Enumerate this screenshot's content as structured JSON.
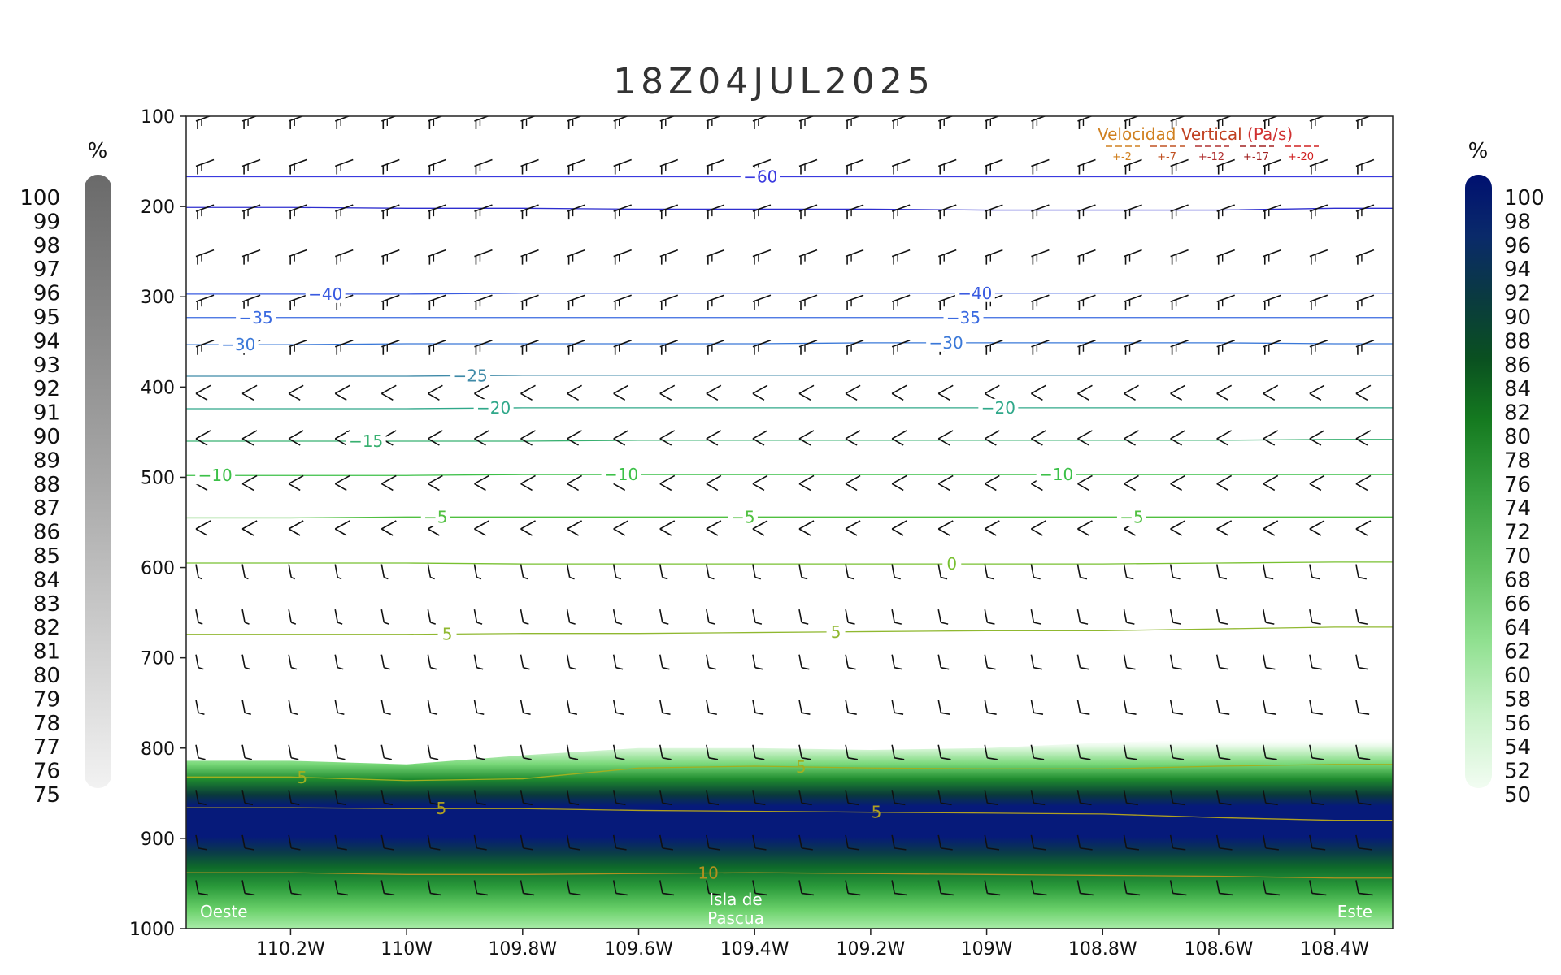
{
  "chart_data": {
    "type": "cross-section",
    "title": "18Z04JUL2025",
    "y_axis": {
      "ticks": [
        "100",
        "200",
        "300",
        "400",
        "500",
        "600",
        "700",
        "800",
        "900",
        "1000"
      ],
      "range": [
        100,
        1000
      ]
    },
    "x_axis": {
      "ticks": [
        "110.2W",
        "110W",
        "109.8W",
        "109.6W",
        "109.4W",
        "109.2W",
        "109W",
        "108.8W",
        "108.6W",
        "108.4W"
      ],
      "tick_values": [
        -110.2,
        -110.0,
        -109.8,
        -109.6,
        -109.4,
        -109.2,
        -109.0,
        -108.8,
        -108.6,
        -108.4
      ],
      "range": [
        -110.38,
        -108.3
      ]
    },
    "temperature_contours": [
      {
        "value": -60,
        "label": "-60",
        "color": "#3a3adf",
        "y": [
          167,
          167,
          167,
          167,
          167,
          167,
          167,
          167,
          167,
          167
        ],
        "labels_at": [
          -109.39
        ]
      },
      {
        "value": -50,
        "label": "",
        "color": "#2e2ecf",
        "y": [
          201,
          202,
          202,
          203,
          203,
          203,
          204,
          204,
          204,
          202
        ],
        "labels_at": []
      },
      {
        "value": -40,
        "label": "-40",
        "color": "#3a5be0",
        "y": [
          297,
          297,
          296,
          296,
          296,
          296,
          296,
          296,
          296,
          296
        ],
        "labels_at": [
          -110.14,
          -109.02
        ]
      },
      {
        "value": -35,
        "label": "-35",
        "color": "#3a6ae0",
        "y": [
          323,
          323,
          323,
          323,
          323,
          323,
          323,
          323,
          323,
          323
        ],
        "labels_at": [
          -110.26,
          -109.04
        ]
      },
      {
        "value": -30,
        "label": "-30",
        "color": "#3a78d8",
        "y": [
          353,
          352,
          352,
          352,
          352,
          351,
          351,
          351,
          351,
          352
        ],
        "labels_at": [
          -110.29,
          -109.07
        ]
      },
      {
        "value": -25,
        "label": "-25",
        "color": "#3f8aa8",
        "y": [
          388,
          388,
          387,
          387,
          387,
          387,
          387,
          387,
          387,
          387
        ],
        "labels_at": [
          -109.89
        ]
      },
      {
        "value": -20,
        "label": "-20",
        "color": "#30a88a",
        "y": [
          424,
          424,
          423,
          423,
          423,
          423,
          423,
          423,
          423,
          423
        ],
        "labels_at": [
          -109.85,
          -108.98
        ]
      },
      {
        "value": -15,
        "label": "-15",
        "color": "#38b070",
        "y": [
          460,
          460,
          460,
          459,
          459,
          459,
          459,
          459,
          459,
          458
        ],
        "labels_at": [
          -110.07
        ]
      },
      {
        "value": -10,
        "label": "-10",
        "color": "#3cc048",
        "y": [
          498,
          498,
          497,
          497,
          497,
          497,
          497,
          497,
          497,
          497
        ],
        "labels_at": [
          -110.33,
          -109.63,
          -108.88
        ]
      },
      {
        "value": -5,
        "label": "-5",
        "color": "#50c040",
        "y": [
          545,
          544,
          544,
          544,
          544,
          544,
          544,
          544,
          544,
          544
        ],
        "labels_at": [
          -109.95,
          -109.42,
          -108.75
        ]
      },
      {
        "value": 0,
        "label": "0",
        "color": "#78c030",
        "y": [
          595,
          595,
          596,
          596,
          596,
          596,
          596,
          596,
          595,
          594
        ],
        "labels_at": [
          -109.06
        ]
      },
      {
        "value": 5,
        "label": "5",
        "color": "#90b830",
        "y": [
          674,
          674,
          673,
          673,
          672,
          671,
          670,
          670,
          668,
          666
        ],
        "labels_at": [
          -109.93,
          -109.26
        ]
      },
      {
        "value": 5,
        "label": "5",
        "color": "#a0b020",
        "y": [
          832,
          836,
          834,
          822,
          820,
          822,
          823,
          823,
          820,
          818
        ],
        "labels_at": [
          -110.18,
          -109.32
        ]
      },
      {
        "value": 5,
        "label": "5",
        "color": "#b0a020",
        "y": [
          866,
          867,
          867,
          869,
          870,
          871,
          872,
          873,
          877,
          880
        ],
        "labels_at": [
          -109.94,
          -109.19
        ]
      },
      {
        "value": 10,
        "label": "10",
        "color": "#b09020",
        "y": [
          938,
          940,
          940,
          939,
          938,
          939,
          940,
          941,
          942,
          944
        ],
        "labels_at": [
          -109.48
        ]
      }
    ],
    "vertical_velocity_legend": {
      "title_parts": [
        "Velocidad ",
        "Vertical",
        "  (Pa/s)"
      ],
      "title_colors": [
        "#d08020",
        "#c04020",
        "#d03030"
      ],
      "values": [
        "+-2",
        "+-7",
        "+-12",
        "+-17",
        "+-20"
      ],
      "colors": [
        "#d08020",
        "#c05020",
        "#b03030",
        "#a02020",
        "#d02020"
      ]
    },
    "colorbar_left": {
      "unit": "%",
      "labels": [
        "100",
        "99",
        "98",
        "97",
        "96",
        "95",
        "94",
        "93",
        "92",
        "91",
        "90",
        "89",
        "88",
        "87",
        "86",
        "85",
        "84",
        "83",
        "82",
        "81",
        "80",
        "79",
        "78",
        "77",
        "76",
        "75"
      ]
    },
    "colorbar_right": {
      "unit": "%",
      "labels": [
        "100",
        "98",
        "96",
        "94",
        "92",
        "90",
        "88",
        "86",
        "84",
        "82",
        "80",
        "78",
        "76",
        "74",
        "72",
        "70",
        "68",
        "66",
        "64",
        "62",
        "60",
        "58",
        "56",
        "54",
        "52",
        "50"
      ]
    },
    "annotations": {
      "west": "Oeste",
      "east": "Este",
      "island_line1": "Isla de",
      "island_line2": "Pascua"
    }
  }
}
